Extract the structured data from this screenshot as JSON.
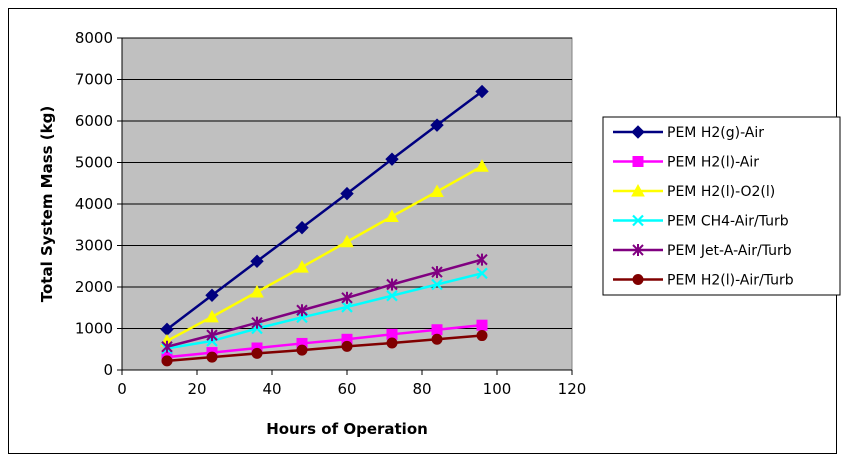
{
  "chart_data": {
    "type": "line",
    "title": "",
    "xlabel": "Hours of Operation",
    "ylabel": "Total System Mass (kg)",
    "xlim": [
      0,
      120
    ],
    "ylim": [
      0,
      8000
    ],
    "xticks": [
      "0",
      "20",
      "40",
      "60",
      "80",
      "100",
      "120"
    ],
    "yticks": [
      "0",
      "1000",
      "2000",
      "3000",
      "4000",
      "5000",
      "6000",
      "7000",
      "8000"
    ],
    "grid": "horizontal",
    "plot_background": "#c0c0c0",
    "legend_position": "right",
    "x": [
      12,
      24,
      36,
      48,
      60,
      72,
      84,
      96
    ],
    "series": [
      {
        "name": "PEM H2(g)-Air",
        "color": "#000080",
        "marker": "diamond",
        "values": [
          980,
          1800,
          2620,
          3430,
          4250,
          5080,
          5900,
          6710
        ]
      },
      {
        "name": "PEM H2(l)-Air",
        "color": "#ff00ff",
        "marker": "square",
        "values": [
          310,
          420,
          530,
          640,
          740,
          860,
          970,
          1080
        ]
      },
      {
        "name": "PEM H2(l)-O2(l)",
        "color": "#ffff00",
        "marker": "triangle",
        "values": [
          700,
          1280,
          1880,
          2480,
          3090,
          3700,
          4300,
          4910
        ]
      },
      {
        "name": "PEM CH4-Air/Turb",
        "color": "#00ffff",
        "marker": "x",
        "values": [
          520,
          700,
          1000,
          1270,
          1520,
          1790,
          2060,
          2330
        ]
      },
      {
        "name": "PEM Jet-A-Air/Turb",
        "color": "#800080",
        "marker": "star",
        "values": [
          560,
          840,
          1140,
          1440,
          1740,
          2060,
          2360,
          2660
        ]
      },
      {
        "name": "PEM H2(l)-Air/Turb",
        "color": "#800000",
        "marker": "circle",
        "values": [
          220,
          310,
          400,
          480,
          570,
          650,
          740,
          830
        ]
      }
    ]
  }
}
